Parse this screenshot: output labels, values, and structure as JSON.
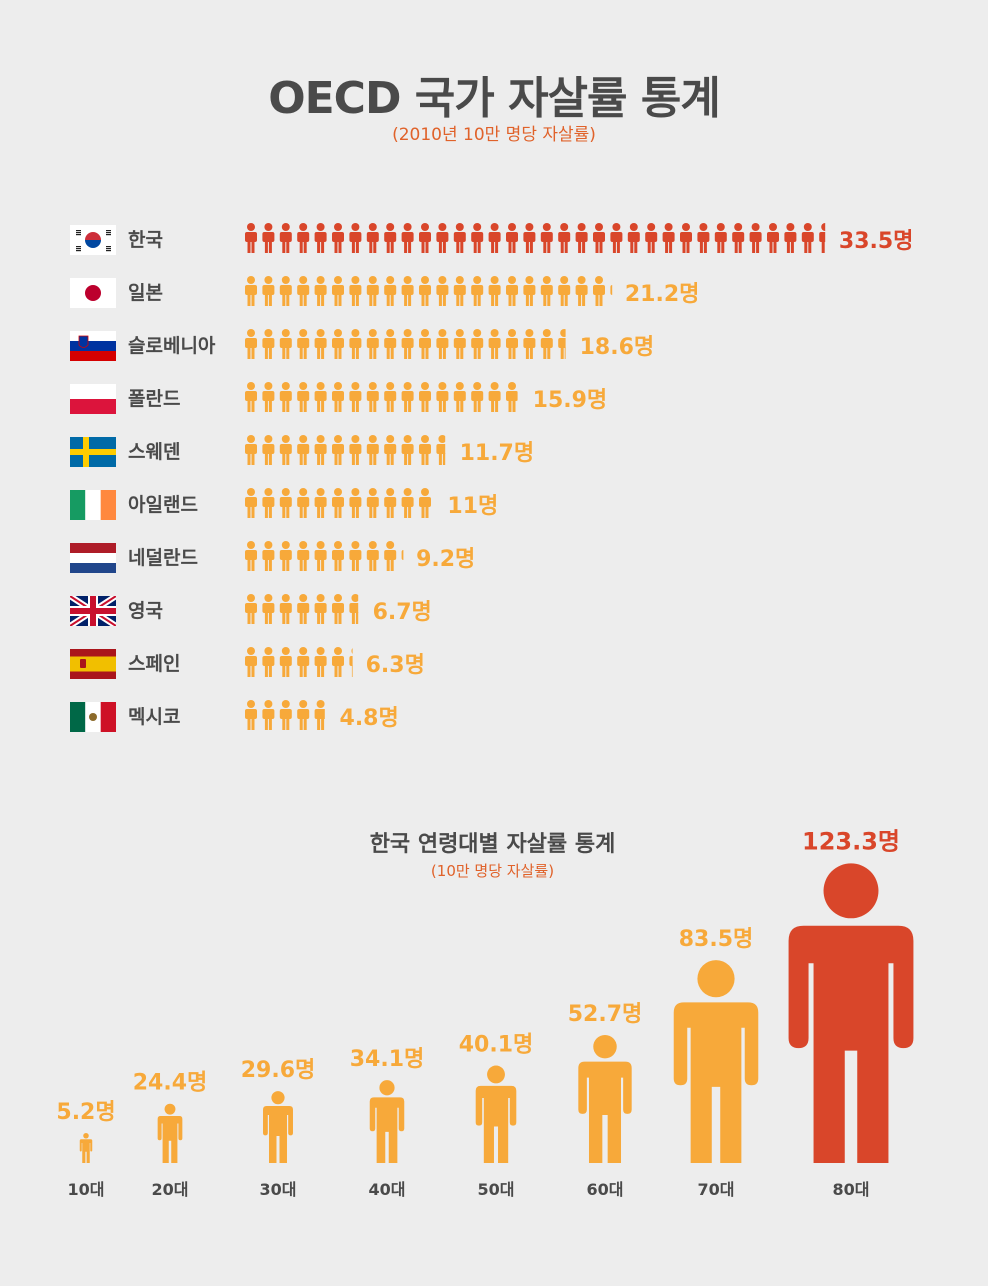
{
  "colors": {
    "top": "#d9462a",
    "bar": "#f7a93a",
    "grey": "#4a4a4a",
    "accent": "#e0622a"
  },
  "header": {
    "title": "OECD 국가 자살률 통계",
    "subtitle": "(2010년 10만 명당 자살률)"
  },
  "age_header": {
    "title": "한국 연령대별 자살률 통계",
    "subtitle": "(10만 명당 자살률)"
  },
  "chart_data": [
    {
      "type": "bar",
      "orientation": "horizontal",
      "title": "OECD 국가 자살률 통계",
      "subtitle": "(2010년 10만 명당 자살률)",
      "unit": "명",
      "categories": [
        "한국",
        "일본",
        "슬로베니아",
        "폴란드",
        "스웨덴",
        "아일랜드",
        "네덜란드",
        "영국",
        "스페인",
        "멕시코"
      ],
      "values": [
        33.5,
        21.2,
        18.6,
        15.9,
        11.7,
        11,
        9.2,
        6.7,
        6.3,
        4.8
      ],
      "value_labels": [
        "33.5명",
        "21.2명",
        "18.6명",
        "15.9명",
        "11.7명",
        "11명",
        "9.2명",
        "6.7명",
        "6.3명",
        "4.8명"
      ],
      "flags": [
        "korea-flag",
        "japan-flag",
        "slovenia-flag",
        "poland-flag",
        "sweden-flag",
        "ireland-flag",
        "netherlands-flag",
        "uk-flag",
        "spain-flag",
        "mexico-flag"
      ],
      "highlight": "한국"
    },
    {
      "type": "bar",
      "title": "한국 연령대별 자살률 통계",
      "subtitle": "(10만 명당 자살률)",
      "unit": "명",
      "categories": [
        "10대",
        "20대",
        "30대",
        "40대",
        "50대",
        "60대",
        "70대",
        "80대"
      ],
      "values": [
        5.2,
        24.4,
        29.6,
        34.1,
        40.1,
        52.7,
        83.5,
        123.3
      ],
      "value_labels": [
        "5.2명",
        "24.4명",
        "29.6명",
        "34.1명",
        "40.1명",
        "52.7명",
        "83.5명",
        "123.3명"
      ],
      "highlight": "80대"
    }
  ]
}
